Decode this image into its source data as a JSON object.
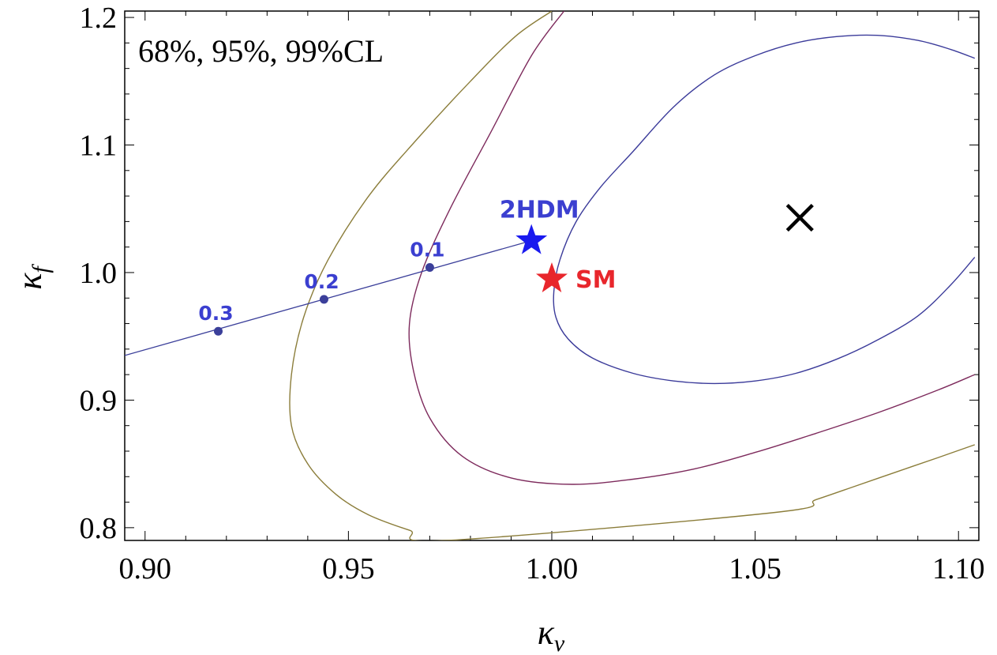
{
  "chart_data": {
    "type": "contour",
    "title": "",
    "annotation": "68%, 95%, 99%CL",
    "xlabel": "κv",
    "ylabel": "κf",
    "xlim": [
      0.895,
      1.105
    ],
    "ylim": [
      0.79,
      1.205
    ],
    "x_ticks": [
      0.9,
      0.95,
      1.0,
      1.05,
      1.1
    ],
    "x_tick_labels": [
      "0.90",
      "0.95",
      "1.00",
      "1.05",
      "1.10"
    ],
    "y_ticks": [
      0.8,
      0.9,
      1.0,
      1.1,
      1.2
    ],
    "y_tick_labels": [
      "0.8",
      "0.9",
      "1.0",
      "1.1",
      "1.2"
    ],
    "best_fit": {
      "x": 1.061,
      "y": 1.043,
      "symbol": "×"
    },
    "contours": [
      {
        "name": "68%CL",
        "color": "#3b3b9a",
        "x": [
          1.104,
          1.098,
          1.09,
          1.08,
          1.07,
          1.06,
          1.05,
          1.04,
          1.03,
          1.02,
          1.01,
          1.004,
          1.001,
          1.0005,
          1.002,
          1.006,
          1.012,
          1.02,
          1.03,
          1.04,
          1.05,
          1.06,
          1.07,
          1.08,
          1.09,
          1.098,
          1.104
        ],
        "y": [
          1.012,
          0.99,
          0.966,
          0.947,
          0.932,
          0.921,
          0.915,
          0.913,
          0.915,
          0.921,
          0.933,
          0.948,
          0.965,
          0.985,
          1.01,
          1.04,
          1.067,
          1.095,
          1.13,
          1.155,
          1.17,
          1.18,
          1.185,
          1.186,
          1.182,
          1.175,
          1.168
        ]
      },
      {
        "name": "95%CL",
        "color": "#7d2a5c",
        "x": [
          1.104,
          1.095,
          1.08,
          1.065,
          1.05,
          1.035,
          1.02,
          1.005,
          0.99,
          0.978,
          0.97,
          0.966,
          0.965,
          0.968,
          0.975,
          0.985,
          0.995,
          1.003
        ],
        "y": [
          0.92,
          0.908,
          0.89,
          0.874,
          0.859,
          0.846,
          0.838,
          0.834,
          0.839,
          0.856,
          0.886,
          0.923,
          0.96,
          1.0,
          1.05,
          1.11,
          1.17,
          1.205
        ]
      },
      {
        "name": "99%CL",
        "color": "#8b7d3a",
        "x": [
          1.104,
          1.095,
          1.085,
          1.075,
          1.065,
          1.055,
          0.974,
          0.965,
          0.955,
          0.947,
          0.94,
          0.936,
          0.936,
          0.939,
          0.945,
          0.955,
          0.967,
          0.98,
          0.991,
          1.0
        ],
        "y": [
          0.865,
          0.855,
          0.844,
          0.833,
          0.822,
          0.812,
          0.79,
          0.798,
          0.81,
          0.826,
          0.85,
          0.88,
          0.92,
          0.965,
          1.01,
          1.06,
          1.105,
          1.15,
          1.185,
          1.205
        ]
      }
    ],
    "tanbeta_line": {
      "color": "#3b3f9a",
      "x": [
        0.895,
        0.995
      ],
      "y": [
        0.935,
        1.025
      ],
      "points": [
        {
          "x": 0.97,
          "y": 1.004,
          "label": "0.1"
        },
        {
          "x": 0.944,
          "y": 0.979,
          "label": "0.2"
        },
        {
          "x": 0.918,
          "y": 0.954,
          "label": "0.3"
        }
      ]
    },
    "markers": [
      {
        "name": "2HDM",
        "x": 0.995,
        "y": 1.025,
        "color": "#1a1aef",
        "symbol": "★"
      },
      {
        "name": "SM",
        "x": 1.0,
        "y": 0.995,
        "color": "#e8262c",
        "symbol": "★"
      }
    ]
  }
}
